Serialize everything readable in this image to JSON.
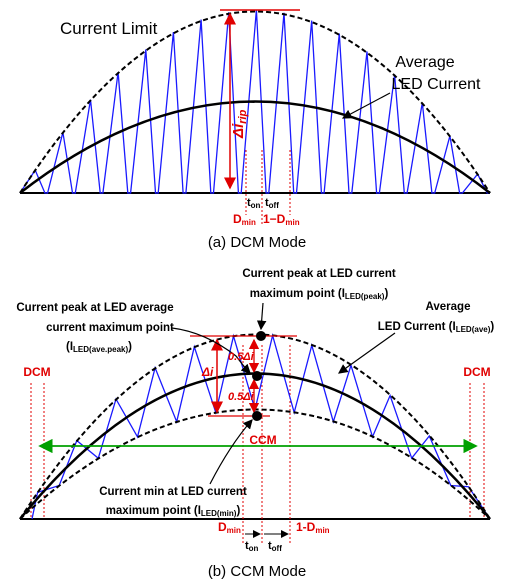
{
  "dcm": {
    "current_limit": "Current Limit",
    "avg_line1": "Average",
    "avg_line2": "LED Current",
    "delta_i": "Δi",
    "delta_i_sub": "rip",
    "t_on": "t",
    "t_on_sub": "on",
    "t_off": "t",
    "t_off_sub": "off",
    "d_min": "D",
    "d_min_sub": "min",
    "one_minus_d": "1−D",
    "one_minus_d_sub": "min",
    "caption": "(a) DCM Mode"
  },
  "ccm": {
    "peak_line1": "Current peak at LED current",
    "peak_line2": "maximum point (I",
    "peak_line2_sub": "LED(peak)",
    "peak_line2_end": ")",
    "avepeak_line1": "Current peak at LED average",
    "avepeak_line2": "current maximum point",
    "avepeak_line3": "(I",
    "avepeak_line3_sub": "LED(ave.peak)",
    "avepeak_line3_end": ")",
    "avg_line1": "Average",
    "avg_line2": "LED Current (I",
    "avg_line2_sub": "LED(ave)",
    "avg_line2_end": ")",
    "half_delta_top": "0.5Δi",
    "half_delta_bottom": "0.5Δi",
    "delta_i": "Δi",
    "dcm_left": "DCM",
    "dcm_right": "DCM",
    "ccm_label": "CCM",
    "min_line1": "Current min at LED current",
    "min_line2": "maximum point (I",
    "min_line2_sub": "LED(min)",
    "min_line2_end": ")",
    "d_min": "D",
    "d_min_sub": "min",
    "one_minus_d": "1-D",
    "one_minus_d_sub": "min",
    "t_on": "t",
    "t_on_sub": "on",
    "t_off": "t",
    "t_off_sub": "off",
    "caption": "(b) CCM Mode"
  },
  "colors": {
    "waveform": "#1a1aff",
    "annotation": "#e00000",
    "range": "#00a000",
    "envelope": "#000000"
  }
}
